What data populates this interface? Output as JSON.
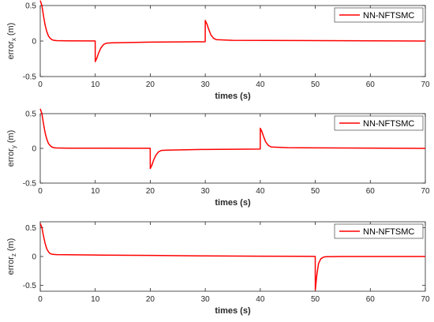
{
  "colors": {
    "series": "#ff0000",
    "axis": "#262626",
    "legend_border": "#262626"
  },
  "chart_data": [
    {
      "type": "line",
      "ylabel": "error",
      "ylabel_sub": "x",
      "ylabel_unit": "(m)",
      "xlabel": "times (s)",
      "xlim": [
        0,
        70
      ],
      "ylim": [
        -0.5,
        0.5
      ],
      "xticks": [
        0,
        10,
        20,
        30,
        40,
        50,
        60,
        70
      ],
      "xtick_labels": [
        "0",
        "10",
        "20",
        "30",
        "40",
        "50",
        "60",
        "70"
      ],
      "yticks": [
        -0.5,
        0,
        0.5
      ],
      "ytick_labels": [
        "-0.5",
        "0",
        "0.5"
      ],
      "grid": false,
      "legend_position": "top-right",
      "series": [
        {
          "name": "NN-NFTSMC",
          "x": [
            0,
            0.3,
            0.6,
            0.9,
            1.2,
            1.5,
            1.8,
            2.1,
            2.5,
            3,
            5,
            9.99,
            10,
            10.3,
            10.6,
            11,
            11.5,
            12,
            13,
            20,
            29.99,
            30,
            30.3,
            30.6,
            31,
            31.5,
            32,
            35,
            70
          ],
          "y": [
            0.57,
            0.5,
            0.35,
            0.22,
            0.13,
            0.07,
            0.04,
            0.02,
            0.01,
            0.005,
            0.003,
            0.002,
            -0.29,
            -0.24,
            -0.17,
            -0.1,
            -0.05,
            -0.03,
            -0.025,
            -0.015,
            -0.01,
            0.29,
            0.24,
            0.17,
            0.09,
            0.04,
            0.02,
            0.01,
            0.0
          ]
        }
      ]
    },
    {
      "type": "line",
      "ylabel": "error",
      "ylabel_sub": "y",
      "ylabel_unit": "(m)",
      "xlabel": "times (s)",
      "xlim": [
        0,
        70
      ],
      "ylim": [
        -0.5,
        0.5
      ],
      "xticks": [
        0,
        10,
        20,
        30,
        40,
        50,
        60,
        70
      ],
      "xtick_labels": [
        "0",
        "10",
        "20",
        "30",
        "40",
        "50",
        "60",
        "70"
      ],
      "yticks": [
        -0.5,
        0,
        0.5
      ],
      "ytick_labels": [
        "-0.5",
        "0",
        "0.5"
      ],
      "grid": false,
      "legend_position": "top-right",
      "series": [
        {
          "name": "NN-NFTSMC",
          "x": [
            0,
            0.3,
            0.6,
            0.9,
            1.2,
            1.5,
            1.8,
            2.1,
            2.5,
            3,
            5,
            19.99,
            20,
            20.3,
            20.6,
            21,
            21.5,
            22,
            23,
            30,
            39.99,
            40,
            40.3,
            40.6,
            41,
            41.5,
            42,
            45,
            70
          ],
          "y": [
            0.57,
            0.5,
            0.35,
            0.22,
            0.13,
            0.07,
            0.04,
            0.02,
            0.01,
            0.005,
            0.003,
            0.002,
            -0.29,
            -0.24,
            -0.17,
            -0.1,
            -0.05,
            -0.03,
            -0.025,
            -0.015,
            -0.01,
            0.29,
            0.24,
            0.17,
            0.09,
            0.04,
            0.02,
            0.01,
            0.0
          ]
        }
      ]
    },
    {
      "type": "line",
      "ylabel": "error",
      "ylabel_sub": "z",
      "ylabel_unit": "(m)",
      "xlabel": "times (s)",
      "xlim": [
        0,
        70
      ],
      "ylim": [
        -0.6,
        0.6
      ],
      "xticks": [
        0,
        10,
        20,
        30,
        40,
        50,
        60,
        70
      ],
      "xtick_labels": [
        "0",
        "10",
        "20",
        "30",
        "40",
        "50",
        "60",
        "70"
      ],
      "yticks": [
        -0.5,
        0,
        0.5
      ],
      "ytick_labels": [
        "-0.5",
        "0",
        "0.5"
      ],
      "grid": false,
      "legend_position": "top-right",
      "series": [
        {
          "name": "NN-NFTSMC",
          "x": [
            0,
            0.3,
            0.6,
            0.9,
            1.2,
            1.5,
            1.8,
            2.1,
            2.5,
            3,
            10,
            20,
            30,
            40,
            49.99,
            50,
            50.3,
            50.6,
            51,
            51.5,
            52,
            55,
            70
          ],
          "y": [
            0.57,
            0.5,
            0.35,
            0.22,
            0.13,
            0.08,
            0.05,
            0.04,
            0.035,
            0.033,
            0.025,
            0.018,
            0.01,
            0.005,
            0.002,
            -0.58,
            -0.3,
            -0.12,
            -0.04,
            -0.01,
            -0.003,
            0.0,
            0.0
          ]
        }
      ]
    }
  ]
}
